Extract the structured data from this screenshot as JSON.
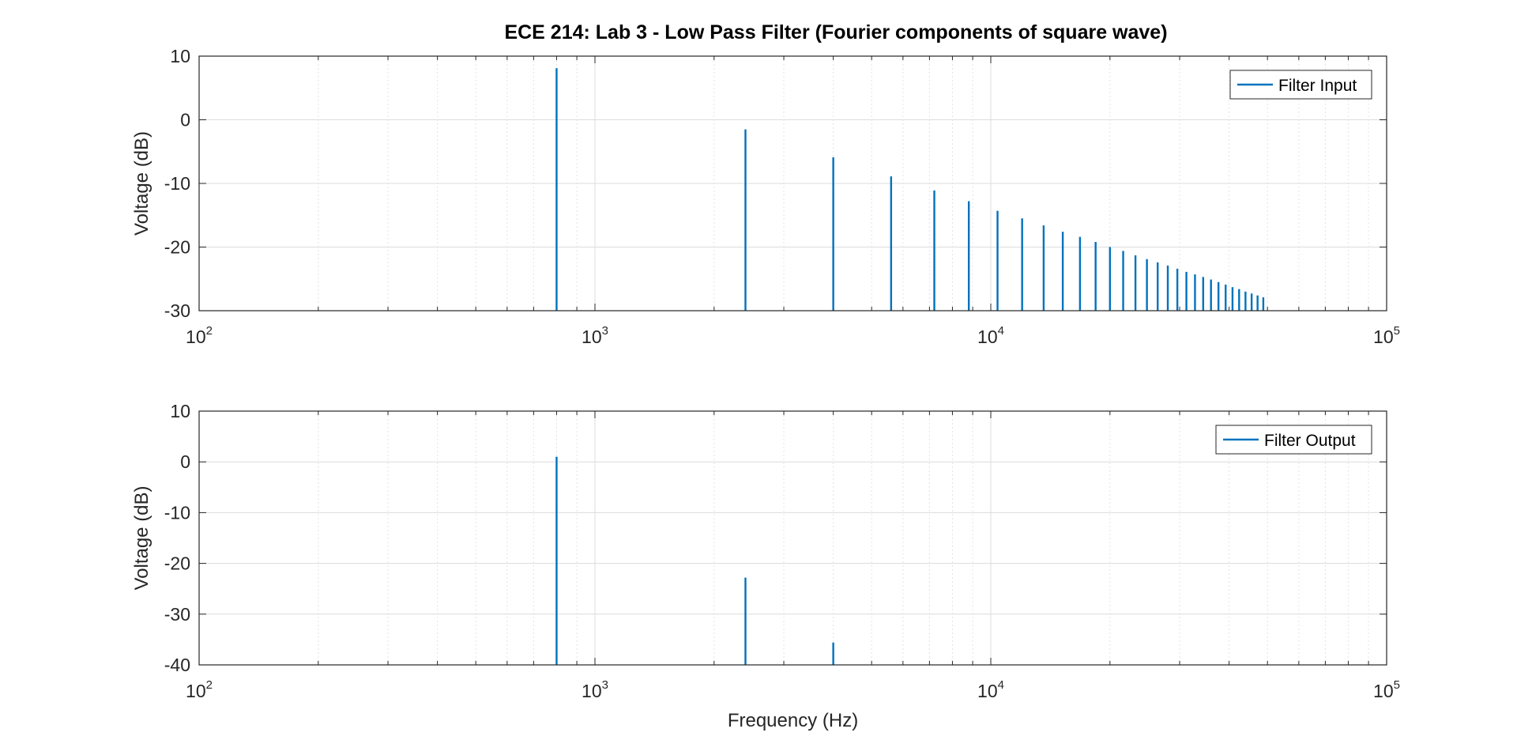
{
  "figure": {
    "title": "ECE 214: Lab 3 - Low Pass Filter (Fourier components of square wave)"
  },
  "chart_data": [
    {
      "type": "line",
      "subtype": "stem-spectrum",
      "xlabel": "",
      "ylabel": "Voltage (dB)",
      "xscale": "log",
      "xlim": [
        100,
        100000
      ],
      "ylim": [
        -30,
        10
      ],
      "yticks": [
        -30,
        -20,
        -10,
        0,
        10
      ],
      "xticks": [
        {
          "base": "10",
          "exp": "2"
        },
        {
          "base": "10",
          "exp": "3"
        },
        {
          "base": "10",
          "exp": "4"
        },
        {
          "base": "10",
          "exp": "5"
        }
      ],
      "grid": true,
      "legend_position": "top-right",
      "series": [
        {
          "name": "Filter Input",
          "color": "#0072BD",
          "x": [
            800,
            2400,
            4000,
            5600,
            7200,
            8800,
            10400,
            12000,
            13600,
            15200,
            16800,
            18400,
            20000,
            21600,
            23200,
            24800,
            26400,
            28000,
            29600,
            31200,
            32800,
            34400,
            36000,
            37600,
            39200,
            40800,
            42400,
            44000,
            45600,
            47200,
            48800
          ],
          "y": [
            8.1,
            -1.5,
            -5.9,
            -8.9,
            -11.1,
            -12.8,
            -14.3,
            -15.5,
            -16.6,
            -17.6,
            -18.4,
            -19.2,
            -20.0,
            -20.6,
            -21.3,
            -21.9,
            -22.4,
            -22.9,
            -23.4,
            -23.9,
            -24.3,
            -24.7,
            -25.1,
            -25.5,
            -25.9,
            -26.3,
            -26.6,
            -27.0,
            -27.3,
            -27.6,
            -27.9
          ]
        }
      ]
    },
    {
      "type": "line",
      "subtype": "stem-spectrum",
      "xlabel": "Frequency (Hz)",
      "ylabel": "Voltage (dB)",
      "xscale": "log",
      "xlim": [
        100,
        100000
      ],
      "ylim": [
        -40,
        10
      ],
      "yticks": [
        -40,
        -30,
        -20,
        -10,
        0,
        10
      ],
      "xticks": [
        {
          "base": "10",
          "exp": "2"
        },
        {
          "base": "10",
          "exp": "3"
        },
        {
          "base": "10",
          "exp": "4"
        },
        {
          "base": "10",
          "exp": "5"
        }
      ],
      "grid": true,
      "legend_position": "top-right",
      "series": [
        {
          "name": "Filter Output",
          "color": "#0072BD",
          "x": [
            800,
            2400,
            4000
          ],
          "y": [
            1.0,
            -22.8,
            -35.6
          ]
        }
      ]
    }
  ]
}
